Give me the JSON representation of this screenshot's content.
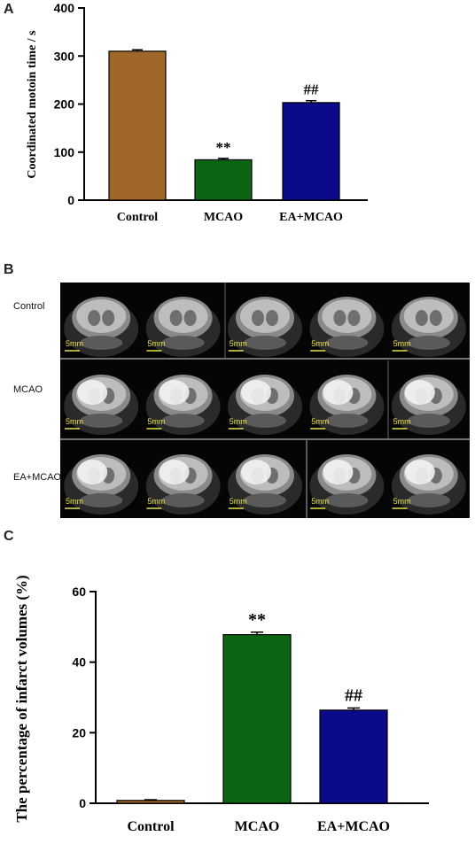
{
  "panels": {
    "a": {
      "letter": "A"
    },
    "b": {
      "letter": "B",
      "row_labels": [
        "Control",
        "MCAO",
        "EA+MCAO"
      ],
      "scale_label": "5mm"
    },
    "c": {
      "letter": "C"
    }
  },
  "chart_data": [
    {
      "type": "bar",
      "ylabel": "Coordinated motoin time / s",
      "categories": [
        "Control",
        "MCAO",
        "EA+MCAO"
      ],
      "values": [
        310,
        84,
        203
      ],
      "errors": [
        3,
        3,
        4
      ],
      "colors": [
        "#A0672A",
        "#0C6512",
        "#0B0A8A"
      ],
      "annotations": [
        "",
        "**",
        "##"
      ],
      "ylim": [
        0,
        400
      ],
      "yticks": [
        0,
        100,
        200,
        300,
        400
      ]
    },
    {
      "type": "bar",
      "ylabel": "The percentage of infarct volumes (%)",
      "categories": [
        "Control",
        "MCAO",
        "EA+MCAO"
      ],
      "values": [
        0.8,
        47.8,
        26.4
      ],
      "errors": [
        0.2,
        0.7,
        0.6
      ],
      "colors": [
        "#A0672A",
        "#0C6512",
        "#0B0A8A"
      ],
      "annotations": [
        "",
        "**",
        "##"
      ],
      "ylim": [
        0,
        60
      ],
      "yticks": [
        0,
        20,
        40,
        60
      ]
    }
  ]
}
